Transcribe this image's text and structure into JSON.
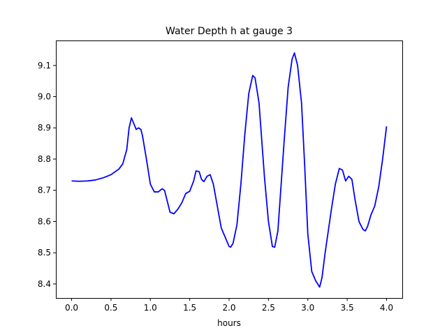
{
  "chart_data": {
    "type": "line",
    "title": "Water Depth h at gauge 3",
    "xlabel": "hours",
    "ylabel": "",
    "xlim": [
      -0.2,
      4.2
    ],
    "ylim": [
      8.355,
      9.18
    ],
    "grid": false,
    "x_ticks": [
      0.0,
      0.5,
      1.0,
      1.5,
      2.0,
      2.5,
      3.0,
      3.5,
      4.0
    ],
    "x_tick_labels": [
      "0.0",
      "0.5",
      "1.0",
      "1.5",
      "2.0",
      "2.5",
      "3.0",
      "3.5",
      "4.0"
    ],
    "y_ticks": [
      8.4,
      8.5,
      8.6,
      8.7,
      8.8,
      8.9,
      9.0,
      9.1
    ],
    "y_tick_labels": [
      "8.4",
      "8.5",
      "8.6",
      "8.7",
      "8.8",
      "8.9",
      "9.0",
      "9.1"
    ],
    "series": [
      {
        "color": "#0000ff",
        "x": [
          0.0,
          0.1,
          0.2,
          0.3,
          0.4,
          0.5,
          0.6,
          0.65,
          0.7,
          0.73,
          0.76,
          0.78,
          0.82,
          0.85,
          0.88,
          0.9,
          0.95,
          1.0,
          1.05,
          1.1,
          1.15,
          1.18,
          1.2,
          1.25,
          1.3,
          1.35,
          1.4,
          1.45,
          1.5,
          1.55,
          1.58,
          1.62,
          1.65,
          1.68,
          1.72,
          1.76,
          1.8,
          1.85,
          1.9,
          1.95,
          2.0,
          2.02,
          2.05,
          2.1,
          2.15,
          2.2,
          2.25,
          2.3,
          2.33,
          2.38,
          2.45,
          2.5,
          2.55,
          2.58,
          2.62,
          2.7,
          2.75,
          2.8,
          2.83,
          2.87,
          2.92,
          2.96,
          3.0,
          3.05,
          3.1,
          3.15,
          3.18,
          3.22,
          3.3,
          3.35,
          3.4,
          3.44,
          3.48,
          3.52,
          3.56,
          3.6,
          3.65,
          3.7,
          3.73,
          3.76,
          3.8,
          3.85,
          3.9,
          3.95,
          4.0
        ],
        "y": [
          8.73,
          8.729,
          8.73,
          8.733,
          8.74,
          8.75,
          8.768,
          8.785,
          8.83,
          8.9,
          8.932,
          8.92,
          8.895,
          8.9,
          8.895,
          8.875,
          8.8,
          8.72,
          8.695,
          8.695,
          8.705,
          8.7,
          8.68,
          8.63,
          8.625,
          8.64,
          8.66,
          8.69,
          8.697,
          8.73,
          8.762,
          8.76,
          8.735,
          8.728,
          8.745,
          8.75,
          8.72,
          8.65,
          8.58,
          8.55,
          8.52,
          8.518,
          8.53,
          8.59,
          8.72,
          8.88,
          9.01,
          9.068,
          9.06,
          8.98,
          8.74,
          8.6,
          8.52,
          8.518,
          8.57,
          8.86,
          9.03,
          9.12,
          9.14,
          9.1,
          8.98,
          8.78,
          8.56,
          8.44,
          8.41,
          8.39,
          8.42,
          8.5,
          8.64,
          8.72,
          8.77,
          8.765,
          8.73,
          8.745,
          8.735,
          8.67,
          8.6,
          8.575,
          8.57,
          8.585,
          8.62,
          8.65,
          8.71,
          8.8,
          8.905
        ]
      }
    ]
  }
}
